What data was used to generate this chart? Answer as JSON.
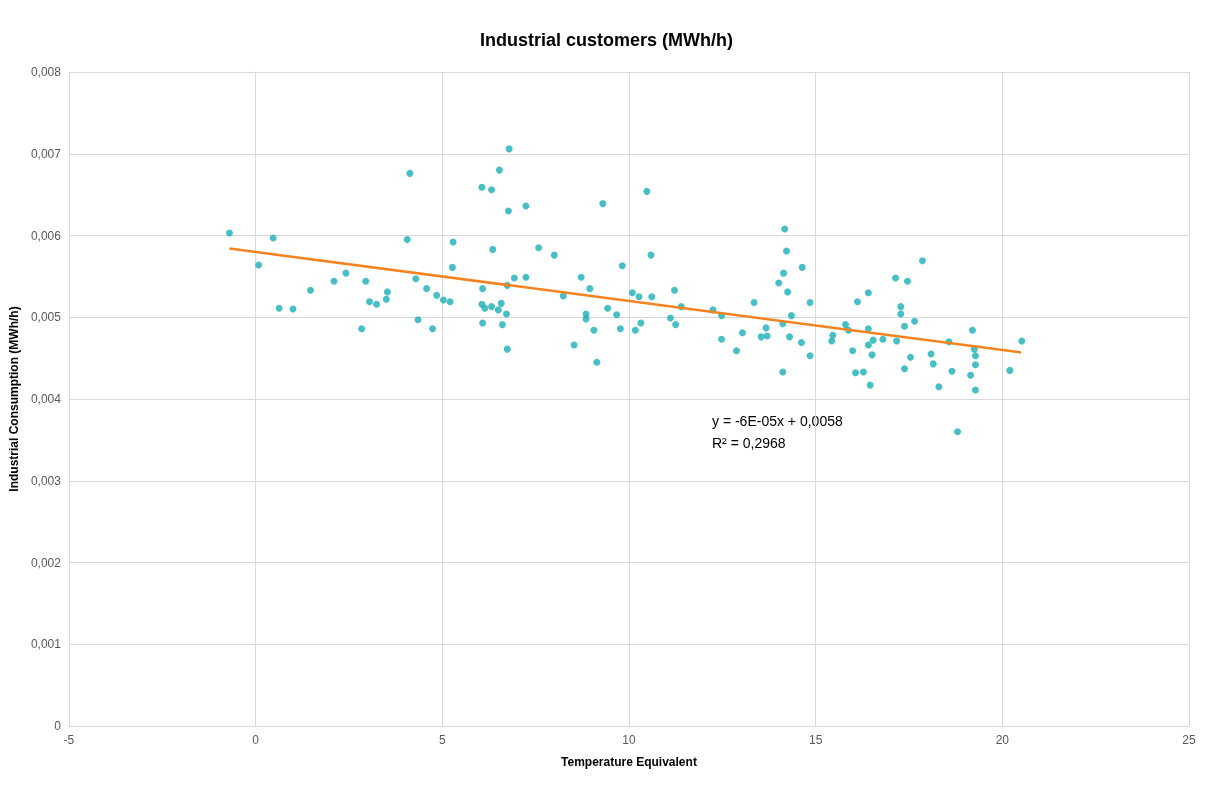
{
  "chart_data": {
    "type": "scatter",
    "title": "Industrial customers (MWh/h)",
    "xlabel": "Temperature Equivalent",
    "ylabel": "Industrial Consumption (MWh/h)",
    "xlim": [
      -5,
      25
    ],
    "xticks": [
      -5,
      0,
      5,
      10,
      15,
      20,
      25
    ],
    "ylim": [
      0,
      0.008
    ],
    "yticks": [
      0,
      {
        "value": 0.001,
        "label": "0,001"
      },
      {
        "value": 0.002,
        "label": "0,002"
      },
      {
        "value": 0.003,
        "label": "0,003"
      },
      {
        "value": 0.004,
        "label": "0,004"
      },
      {
        "value": 0.005,
        "label": "0,005"
      },
      {
        "value": 0.006,
        "label": "0,006"
      },
      {
        "value": 0.007,
        "label": "0,007"
      },
      {
        "value": 0.008,
        "label": "0,008"
      }
    ],
    "grid": true,
    "marker": "circle",
    "annotations": [
      "y = -6E-05x + 0,0058",
      "R² = 0,2968"
    ],
    "series": [
      {
        "color": "#1aafb5",
        "x": [
          -0.7,
          0.08,
          0.47,
          0.63,
          1.0,
          1.47,
          2.1,
          2.42,
          2.84,
          2.95,
          3.05,
          3.24,
          3.5,
          3.53,
          4.06,
          4.13,
          4.29,
          4.35,
          4.58,
          4.74,
          4.85,
          5.03,
          5.21,
          5.27,
          5.29,
          6.06,
          6.32,
          6.53,
          6.79,
          6.77,
          7.24,
          6.35,
          7.58,
          8.0,
          6.08,
          6.93,
          7.24,
          6.74,
          6.06,
          6.14,
          6.32,
          6.58,
          6.5,
          6.72,
          6.08,
          6.61,
          6.74,
          8.24,
          8.53,
          8.72,
          8.95,
          8.85,
          8.85,
          9.06,
          9.3,
          9.14,
          9.43,
          9.67,
          9.77,
          9.82,
          10.09,
          10.27,
          10.17,
          10.32,
          10.48,
          10.59,
          10.61,
          11.11,
          11.25,
          11.22,
          11.4,
          12.25,
          12.48,
          12.48,
          12.88,
          13.04,
          13.35,
          13.54,
          13.67,
          13.7,
          14.12,
          14.01,
          14.14,
          14.17,
          14.22,
          14.25,
          14.12,
          14.35,
          14.3,
          14.64,
          14.62,
          14.85,
          14.85,
          15.43,
          15.46,
          15.8,
          15.88,
          15.99,
          16.12,
          16.07,
          16.28,
          16.41,
          16.41,
          16.41,
          16.54,
          16.51,
          16.46,
          16.8,
          17.17,
          17.14,
          17.46,
          17.86,
          17.28,
          17.28,
          17.38,
          17.65,
          17.54,
          17.38,
          18.09,
          18.15,
          18.3,
          18.57,
          18.65,
          18.8,
          19.2,
          19.25,
          19.28,
          19.28,
          19.15,
          19.28,
          20.2,
          20.52
        ],
        "values": [
          0.00603,
          0.00564,
          0.00597,
          0.00511,
          0.0051,
          0.00533,
          0.00544,
          0.00554,
          0.00486,
          0.00544,
          0.00519,
          0.00516,
          0.00522,
          0.00531,
          0.00595,
          0.00676,
          0.00547,
          0.00497,
          0.00535,
          0.00486,
          0.00527,
          0.00521,
          0.00519,
          0.00561,
          0.00592,
          0.00659,
          0.00656,
          0.0068,
          0.00706,
          0.0063,
          0.00636,
          0.00583,
          0.00585,
          0.00576,
          0.00535,
          0.00548,
          0.00549,
          0.00539,
          0.00516,
          0.00511,
          0.00513,
          0.00517,
          0.00509,
          0.00504,
          0.00493,
          0.00491,
          0.00461,
          0.00526,
          0.00466,
          0.00549,
          0.00535,
          0.00504,
          0.00498,
          0.00484,
          0.00639,
          0.00445,
          0.00511,
          0.00503,
          0.00486,
          0.00563,
          0.0053,
          0.00525,
          0.00484,
          0.00493,
          0.00654,
          0.00576,
          0.00525,
          0.00499,
          0.00491,
          0.00533,
          0.00513,
          0.00509,
          0.00502,
          0.00473,
          0.00459,
          0.00481,
          0.00518,
          0.00476,
          0.00487,
          0.00477,
          0.00433,
          0.00542,
          0.00554,
          0.00608,
          0.00581,
          0.00531,
          0.00492,
          0.00502,
          0.00476,
          0.00561,
          0.00469,
          0.00518,
          0.00453,
          0.00471,
          0.00478,
          0.00491,
          0.00484,
          0.00459,
          0.00519,
          0.00432,
          0.00433,
          0.0053,
          0.00486,
          0.00466,
          0.00472,
          0.00454,
          0.00417,
          0.00473,
          0.00471,
          0.00548,
          0.00544,
          0.00569,
          0.00513,
          0.00504,
          0.00489,
          0.00495,
          0.00451,
          0.00437,
          0.00455,
          0.00443,
          0.00415,
          0.0047,
          0.00434,
          0.0036,
          0.00484,
          0.00461,
          0.00453,
          0.00442,
          0.00429,
          0.00411,
          0.00435,
          0.00471
        ]
      },
      {
        "type": "line",
        "color": "#f5821f",
        "marker": "none",
        "line_style": "solid",
        "x": [
          -0.7,
          20.5
        ],
        "values": [
          0.00584,
          0.00457
        ]
      }
    ]
  }
}
